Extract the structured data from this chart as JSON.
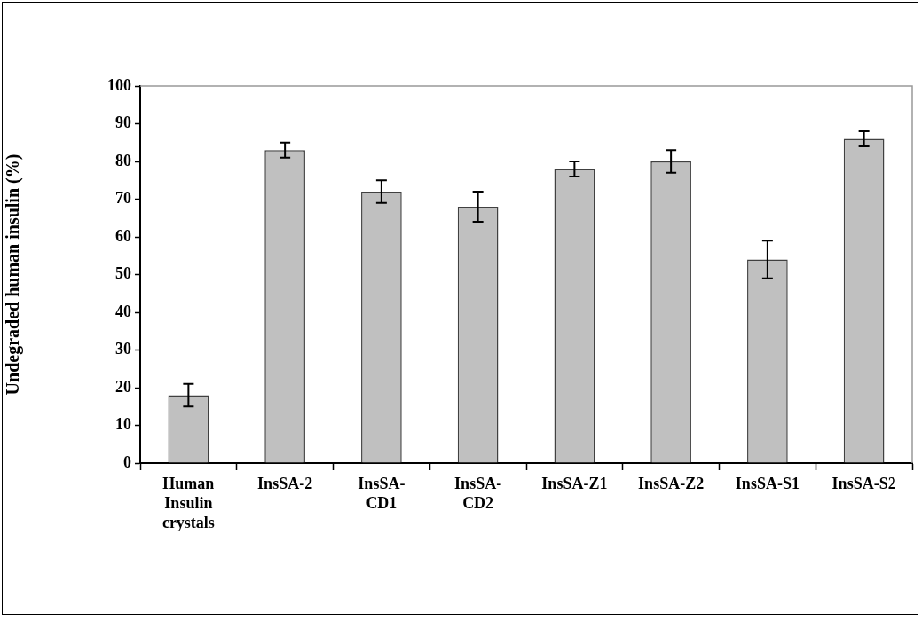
{
  "chart_data": {
    "type": "bar",
    "ylabel": "Undegraded human insulin (%)",
    "categories": [
      "Human Insulin crystals",
      "InsSA-2",
      "InsSA-CD1",
      "InsSA-CD2",
      "InsSA-Z1",
      "InsSA-Z2",
      "InsSA-S1",
      "InsSA-S2"
    ],
    "values": [
      18,
      83,
      72,
      68,
      78,
      80,
      54,
      86
    ],
    "errors": [
      3,
      2,
      3,
      4,
      2,
      3,
      5,
      2
    ],
    "color": "#c0c0c0",
    "ylim": [
      0,
      100
    ],
    "yticks": [
      0,
      10,
      20,
      30,
      40,
      50,
      60,
      70,
      80,
      90,
      100
    ],
    "grid": false,
    "legend": false
  }
}
